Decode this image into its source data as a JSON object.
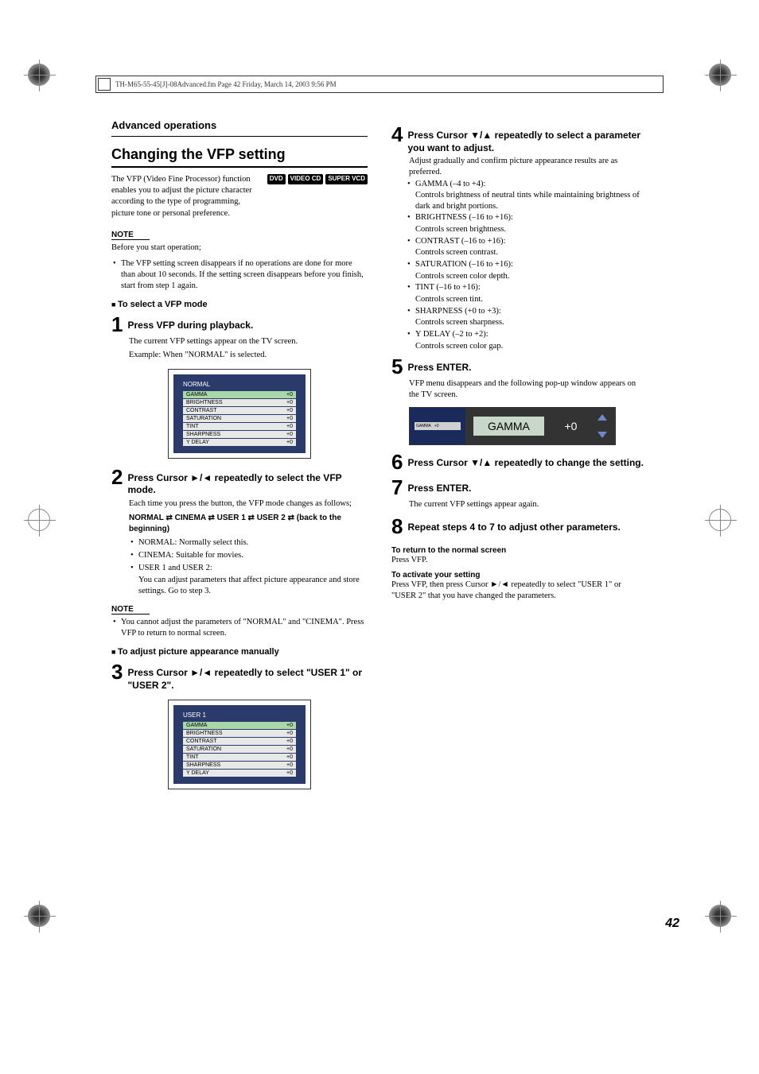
{
  "header": "TH-M65-55-45[J]-08Advanced.fm  Page 42  Friday, March 14, 2003  9:56 PM",
  "section": "Advanced operations",
  "title": "Changing the VFP setting",
  "intro": "The VFP (Video Fine Processor) function enables you to adjust the picture character according to the type of programming, picture tone or personal preference.",
  "format_icons": [
    "DVD",
    "VIDEO CD",
    "SUPER VCD"
  ],
  "note_label": "NOTE",
  "note1_intro": "Before you start operation;",
  "note1_bullet": "The VFP setting screen disappears if no operations are done for more than about 10 seconds. If the setting screen disappears before you finish, start from step 1 again.",
  "sub1": "To select a VFP mode",
  "step1": "Press VFP during playback.",
  "step1_d1": "The current VFP settings appear on the TV screen.",
  "step1_d2": "Example: When \"NORMAL\" is selected.",
  "vfp_normal_title": "NORMAL",
  "vfp_user_title": "USER 1",
  "vfp_params": [
    {
      "n": "GAMMA",
      "v": "+0",
      "hl": true
    },
    {
      "n": "BRIGHTNESS",
      "v": "+0"
    },
    {
      "n": "CONTRAST",
      "v": "+0"
    },
    {
      "n": "SATURATION",
      "v": "+0"
    },
    {
      "n": "TINT",
      "v": "+0"
    },
    {
      "n": "SHARPNESS",
      "v": "+0"
    },
    {
      "n": "Y DELAY",
      "v": "+0"
    }
  ],
  "step2": "Press Cursor ►/◄ repeatedly to select the VFP mode.",
  "step2_d1": "Each time you press the button, the VFP mode changes as follows;",
  "cycle_text": "NORMAL ⇄ CINEMA ⇄ USER 1 ⇄ USER 2 ⇄ (back to the beginning)",
  "step2_b1": "NORMAL: Normally select this.",
  "step2_b2": "CINEMA:  Suitable for movies.",
  "step2_b3": "USER 1 and USER 2:",
  "step2_b3d": "You can adjust parameters that affect picture appearance and store settings. Go to step 3.",
  "note2_b1": "You cannot adjust the parameters of \"NORMAL\" and \"CINEMA\". Press VFP to return to normal screen.",
  "sub2": "To adjust picture appearance manually",
  "step3": "Press Cursor ►/◄ repeatedly to select \"USER 1\" or \"USER 2\".",
  "step4": "Press Cursor ▼/▲ repeatedly to select a parameter you want to adjust.",
  "step4_d1": "Adjust gradually and confirm picture appearance results are as preferred.",
  "params": [
    {
      "t": "GAMMA (–4 to +4):",
      "d": "Controls brightness of neutral tints while maintaining brightness of dark and bright portions."
    },
    {
      "t": "BRIGHTNESS (–16 to +16):",
      "d": "Controls screen brightness."
    },
    {
      "t": "CONTRAST (–16 to +16):",
      "d": "Controls screen contrast."
    },
    {
      "t": "SATURATION (–16 to +16):",
      "d": "Controls screen color depth."
    },
    {
      "t": "TINT (–16 to +16):",
      "d": "Controls screen tint."
    },
    {
      "t": "SHARPNESS (+0 to +3):",
      "d": "Controls screen sharpness."
    },
    {
      "t": "Y DELAY (–2 to +2):",
      "d": "Controls screen color gap."
    }
  ],
  "step5": "Press ENTER.",
  "step5_d1": "VFP menu disappears and the following pop-up window appears on the TV screen.",
  "gamma_label": "GAMMA",
  "gamma_val": "+0",
  "step6": "Press Cursor ▼/▲ repeatedly to change the setting.",
  "step7": "Press ENTER.",
  "step7_d1": "The current VFP settings appear again.",
  "step8": "Repeat steps 4 to 7 to adjust other parameters.",
  "return_h": "To return to the normal screen",
  "return_t": "Press VFP.",
  "activate_h": "To activate your setting",
  "activate_t": "Press VFP, then press Cursor ►/◄ repeatedly to select \"USER 1\" or \"USER 2\" that you have changed the parameters.",
  "page_num": "42"
}
